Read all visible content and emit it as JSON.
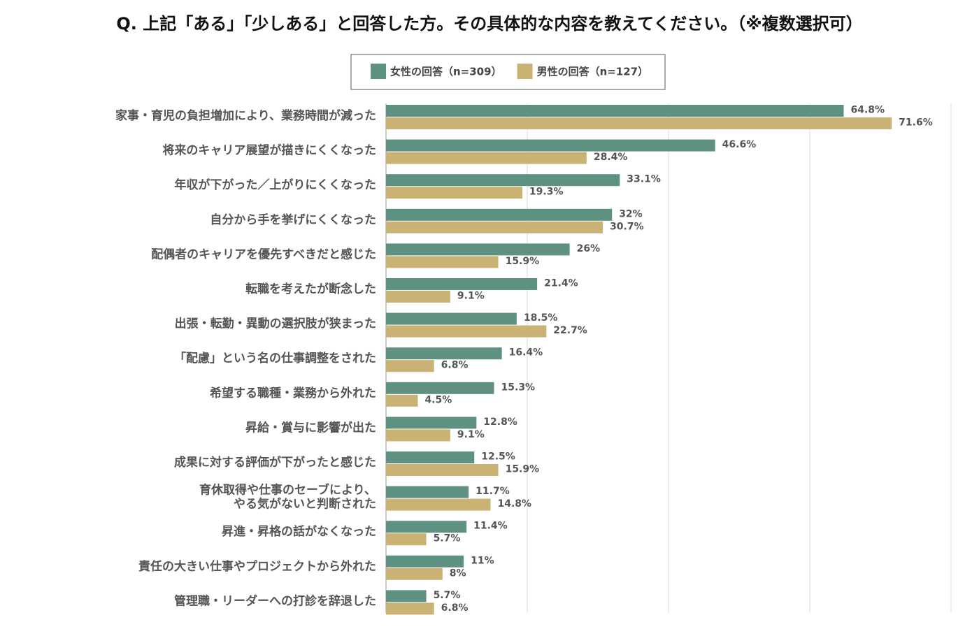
{
  "chart_data": {
    "type": "hbar",
    "title": "Q. 上記「ある」「少しある」と回答した方。その具体的な内容を教えてください。（※複数選択可）",
    "categories": [
      "家事・育児の負担増加により、業務時間が減った",
      "将来のキャリア展望が描きにくくなった",
      "年収が下がった／上がりにくくなった",
      "自分から手を挙げにくくなった",
      "配偶者のキャリアを優先すべきだと感じた",
      "転職を考えたが断念した",
      "出張・転勤・異動の選択肢が狭まった",
      "「配慮」という名の仕事調整をされた",
      "希望する職種・業務から外れた",
      "昇給・賞与に影響が出た",
      "成果に対する評価が下がったと感じた",
      "育休取得や仕事のセーブにより、\nやる気がないと判断された",
      "昇進・昇格の話がなくなった",
      "責任の大きい仕事やプロジェクトから外れた",
      "管理職・リーダーへの打診を辞退した"
    ],
    "series": [
      {
        "name": "女性の回答（n=309）",
        "color": "#5e9181",
        "values": [
          64.8,
          46.6,
          33.1,
          32,
          26,
          21.4,
          18.5,
          16.4,
          15.3,
          12.8,
          12.5,
          11.7,
          11.4,
          11,
          5.7
        ],
        "value_labels": [
          "64.8%",
          "46.6%",
          "33.1%",
          "32%",
          "26%",
          "21.4%",
          "18.5%",
          "16.4%",
          "15.3%",
          "12.8%",
          "12.5%",
          "11.7%",
          "11.4%",
          "11%",
          "5.7%"
        ]
      },
      {
        "name": "男性の回答（n=127）",
        "color": "#c9b274",
        "values": [
          71.6,
          28.4,
          19.3,
          30.7,
          15.9,
          9.1,
          22.7,
          6.8,
          4.5,
          9.1,
          15.9,
          14.8,
          5.7,
          8,
          6.8
        ],
        "value_labels": [
          "71.6%",
          "28.4%",
          "19.3%",
          "30.7%",
          "15.9%",
          "9.1%",
          "22.7%",
          "6.8%",
          "4.5%",
          "9.1%",
          "15.9%",
          "14.8%",
          "5.7%",
          "8%",
          "6.8%"
        ]
      }
    ],
    "xlim": [
      0,
      80
    ],
    "xticks": [
      0,
      20,
      40,
      60,
      80
    ],
    "grid": true
  }
}
